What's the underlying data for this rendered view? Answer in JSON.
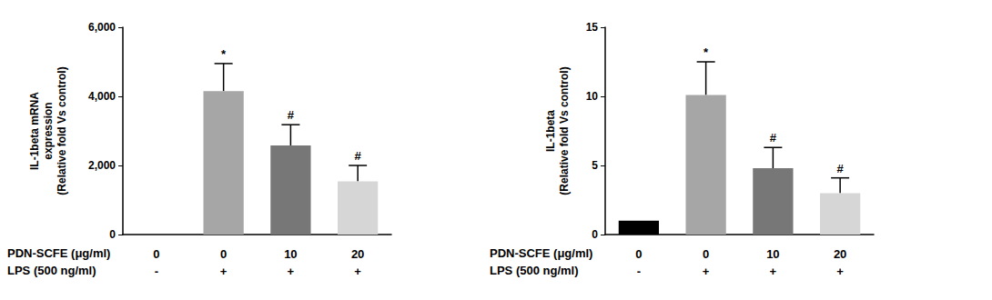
{
  "chart_data": [
    {
      "type": "bar",
      "y_label": "IL-1beta mRNA\nexpression\n(Relative fold Vs control)",
      "row_labels": [
        "PDN-SCFE (μg/ml)",
        "LPS (500 ng/ml)"
      ],
      "categories": [
        "0",
        "0",
        "10",
        "20"
      ],
      "categories2": [
        "-",
        "+",
        "+",
        "+"
      ],
      "values": [
        1,
        4150,
        2580,
        1540
      ],
      "errors": [
        null,
        800,
        600,
        460
      ],
      "annotations": [
        null,
        "*",
        "#",
        "#"
      ],
      "colors": [
        "#000000",
        "#a6a6a6",
        "#777777",
        "#d6d6d6"
      ],
      "ylim": [
        0,
        6000
      ],
      "yticks": [
        0,
        2000,
        4000,
        6000
      ],
      "grid": false
    },
    {
      "type": "bar",
      "y_label": "IL-1beta\n(Relative fold Vs control)",
      "row_labels": [
        "PDN-SCFE (μg/ml)",
        "LPS (500 ng/ml)"
      ],
      "categories": [
        "0",
        "0",
        "10",
        "20"
      ],
      "categories2": [
        "-",
        "+",
        "+",
        "+"
      ],
      "values": [
        1,
        10.1,
        4.8,
        3.0
      ],
      "errors": [
        null,
        2.4,
        1.5,
        1.1
      ],
      "annotations": [
        null,
        "*",
        "#",
        "#"
      ],
      "colors": [
        "#000000",
        "#a6a6a6",
        "#777777",
        "#d6d6d6"
      ],
      "ylim": [
        0,
        15
      ],
      "yticks": [
        0,
        5,
        10,
        15
      ],
      "grid": false
    }
  ]
}
